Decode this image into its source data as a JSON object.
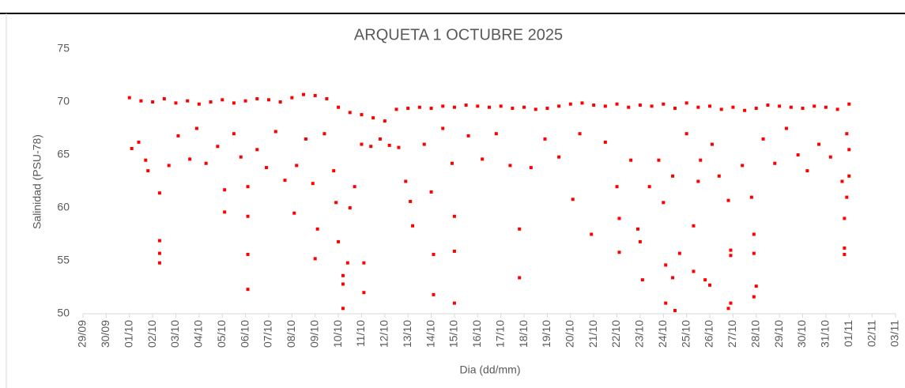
{
  "chart_data": {
    "type": "scatter",
    "title": "ARQUETA 1 OCTUBRE 2025",
    "x_label": "Dia (dd/mm)",
    "y_label": "Salinidad (PSU-78)",
    "color": "#ff0000",
    "xlim": [
      0,
      35
    ],
    "ylim": [
      50,
      75
    ],
    "yticks": [
      50,
      55,
      60,
      65,
      70,
      75
    ],
    "xticks": [
      {
        "value": 0,
        "label": "29/09"
      },
      {
        "value": 1,
        "label": "30/09"
      },
      {
        "value": 2,
        "label": "01/10"
      },
      {
        "value": 3,
        "label": "02/10"
      },
      {
        "value": 4,
        "label": "03/10"
      },
      {
        "value": 5,
        "label": "04/10"
      },
      {
        "value": 6,
        "label": "05/10"
      },
      {
        "value": 7,
        "label": "06/10"
      },
      {
        "value": 8,
        "label": "07/10"
      },
      {
        "value": 9,
        "label": "08/10"
      },
      {
        "value": 10,
        "label": "09/10"
      },
      {
        "value": 11,
        "label": "10/10"
      },
      {
        "value": 12,
        "label": "11/10"
      },
      {
        "value": 13,
        "label": "12/10"
      },
      {
        "value": 14,
        "label": "13/10"
      },
      {
        "value": 15,
        "label": "14/10"
      },
      {
        "value": 16,
        "label": "15/10"
      },
      {
        "value": 17,
        "label": "16/10"
      },
      {
        "value": 18,
        "label": "17/10"
      },
      {
        "value": 19,
        "label": "18/10"
      },
      {
        "value": 20,
        "label": "19/10"
      },
      {
        "value": 21,
        "label": "20/10"
      },
      {
        "value": 22,
        "label": "21/10"
      },
      {
        "value": 23,
        "label": "22/10"
      },
      {
        "value": 24,
        "label": "23/10"
      },
      {
        "value": 25,
        "label": "24/10"
      },
      {
        "value": 26,
        "label": "25/10"
      },
      {
        "value": 27,
        "label": "26/10"
      },
      {
        "value": 28,
        "label": "27/10"
      },
      {
        "value": 29,
        "label": "28/10"
      },
      {
        "value": 30,
        "label": "29/10"
      },
      {
        "value": 31,
        "label": "30/10"
      },
      {
        "value": 32,
        "label": "31/10"
      },
      {
        "value": 33,
        "label": "01/11"
      },
      {
        "value": 34,
        "label": "02/11"
      },
      {
        "value": 35,
        "label": "03/11"
      }
    ],
    "x": [
      2.0,
      2.5,
      3.0,
      3.5,
      4.0,
      4.5,
      5.0,
      5.5,
      6.0,
      6.5,
      7.0,
      7.5,
      8.0,
      8.5,
      9.0,
      9.5,
      10.0,
      10.5,
      11.0,
      11.5,
      12.0,
      12.5,
      13.0,
      13.5,
      14.0,
      14.5,
      15.0,
      15.5,
      16.0,
      16.5,
      17.0,
      17.5,
      18.0,
      18.5,
      19.0,
      19.5,
      20.0,
      20.5,
      21.0,
      21.5,
      22.0,
      22.5,
      23.0,
      23.5,
      24.0,
      24.5,
      25.0,
      25.5,
      26.0,
      26.5,
      27.0,
      27.5,
      28.0,
      28.5,
      29.0,
      29.5,
      30.0,
      30.5,
      31.0,
      31.5,
      32.0,
      32.5,
      33.0,
      2.1,
      2.4,
      2.7,
      2.8,
      3.3,
      3.3,
      3.3,
      3.3,
      3.7,
      4.1,
      4.6,
      4.9,
      5.3,
      5.8,
      6.1,
      6.1,
      6.5,
      6.8,
      7.1,
      7.1,
      7.1,
      7.1,
      7.5,
      7.9,
      8.3,
      8.7,
      9.1,
      9.2,
      9.6,
      9.9,
      10.0,
      10.1,
      10.4,
      10.8,
      10.9,
      11.0,
      11.2,
      11.2,
      11.2,
      11.4,
      11.5,
      11.7,
      12.0,
      12.1,
      12.1,
      12.4,
      12.8,
      13.2,
      13.6,
      13.9,
      14.1,
      14.2,
      14.7,
      15.0,
      15.1,
      15.1,
      15.5,
      15.9,
      16.0,
      16.0,
      16.0,
      16.6,
      17.2,
      17.8,
      18.4,
      18.8,
      18.8,
      19.3,
      19.9,
      20.5,
      21.1,
      21.4,
      21.9,
      22.5,
      23.0,
      23.1,
      23.1,
      23.6,
      23.9,
      24.0,
      24.1,
      24.4,
      24.8,
      25.0,
      25.1,
      25.1,
      25.4,
      25.4,
      25.5,
      25.7,
      26.0,
      26.3,
      26.3,
      26.5,
      26.6,
      26.8,
      27.0,
      27.1,
      27.4,
      27.8,
      27.9,
      27.9,
      27.9,
      27.8,
      28.4,
      28.8,
      28.9,
      28.9,
      29.0,
      28.9,
      29.3,
      29.8,
      30.3,
      30.8,
      31.2,
      31.7,
      32.2,
      32.7,
      32.8,
      32.8,
      32.8,
      32.9,
      33.0,
      33.0,
      32.9
    ],
    "values": [
      70.4,
      70.1,
      70.0,
      70.3,
      69.9,
      70.1,
      69.8,
      70.0,
      70.2,
      69.9,
      70.1,
      70.3,
      70.2,
      70.0,
      70.4,
      70.7,
      70.6,
      70.3,
      69.5,
      69.0,
      68.8,
      68.5,
      68.2,
      69.3,
      69.4,
      69.5,
      69.4,
      69.6,
      69.5,
      69.7,
      69.6,
      69.5,
      69.6,
      69.4,
      69.5,
      69.3,
      69.4,
      69.6,
      69.8,
      69.9,
      69.7,
      69.6,
      69.8,
      69.5,
      69.7,
      69.6,
      69.8,
      69.4,
      69.9,
      69.5,
      69.6,
      69.3,
      69.5,
      69.2,
      69.4,
      69.7,
      69.6,
      69.5,
      69.4,
      69.6,
      69.5,
      69.3,
      69.8,
      65.6,
      66.2,
      64.5,
      63.5,
      61.4,
      56.9,
      55.7,
      54.8,
      64.0,
      66.8,
      64.6,
      67.5,
      64.2,
      65.8,
      61.7,
      59.6,
      67.0,
      64.8,
      62.0,
      59.2,
      55.6,
      52.3,
      65.5,
      63.8,
      67.2,
      62.6,
      59.5,
      64.0,
      66.5,
      62.3,
      55.2,
      58.0,
      67.0,
      63.5,
      60.5,
      56.8,
      53.6,
      52.8,
      50.5,
      54.8,
      60.0,
      62.0,
      66.0,
      54.8,
      52.0,
      65.8,
      66.5,
      65.9,
      65.7,
      62.5,
      60.6,
      58.3,
      66.0,
      61.5,
      55.6,
      51.8,
      67.5,
      64.2,
      59.2,
      55.9,
      51.0,
      66.8,
      64.6,
      67.0,
      64.0,
      58.0,
      53.4,
      63.8,
      66.5,
      64.8,
      60.8,
      67.0,
      57.5,
      66.2,
      62.0,
      55.8,
      59.0,
      64.5,
      58.0,
      56.8,
      53.2,
      62.0,
      64.5,
      60.5,
      54.6,
      51.0,
      63.0,
      53.4,
      50.3,
      55.7,
      67.0,
      58.3,
      54.0,
      62.5,
      64.5,
      53.2,
      52.7,
      66.0,
      63.0,
      60.7,
      56.0,
      55.5,
      51.0,
      50.5,
      64.0,
      61.0,
      57.5,
      55.7,
      52.6,
      51.6,
      66.5,
      64.2,
      67.5,
      65.0,
      63.5,
      66.0,
      64.8,
      62.5,
      59.0,
      56.2,
      55.6,
      61.0,
      63.0,
      65.5,
      67.0
    ]
  }
}
